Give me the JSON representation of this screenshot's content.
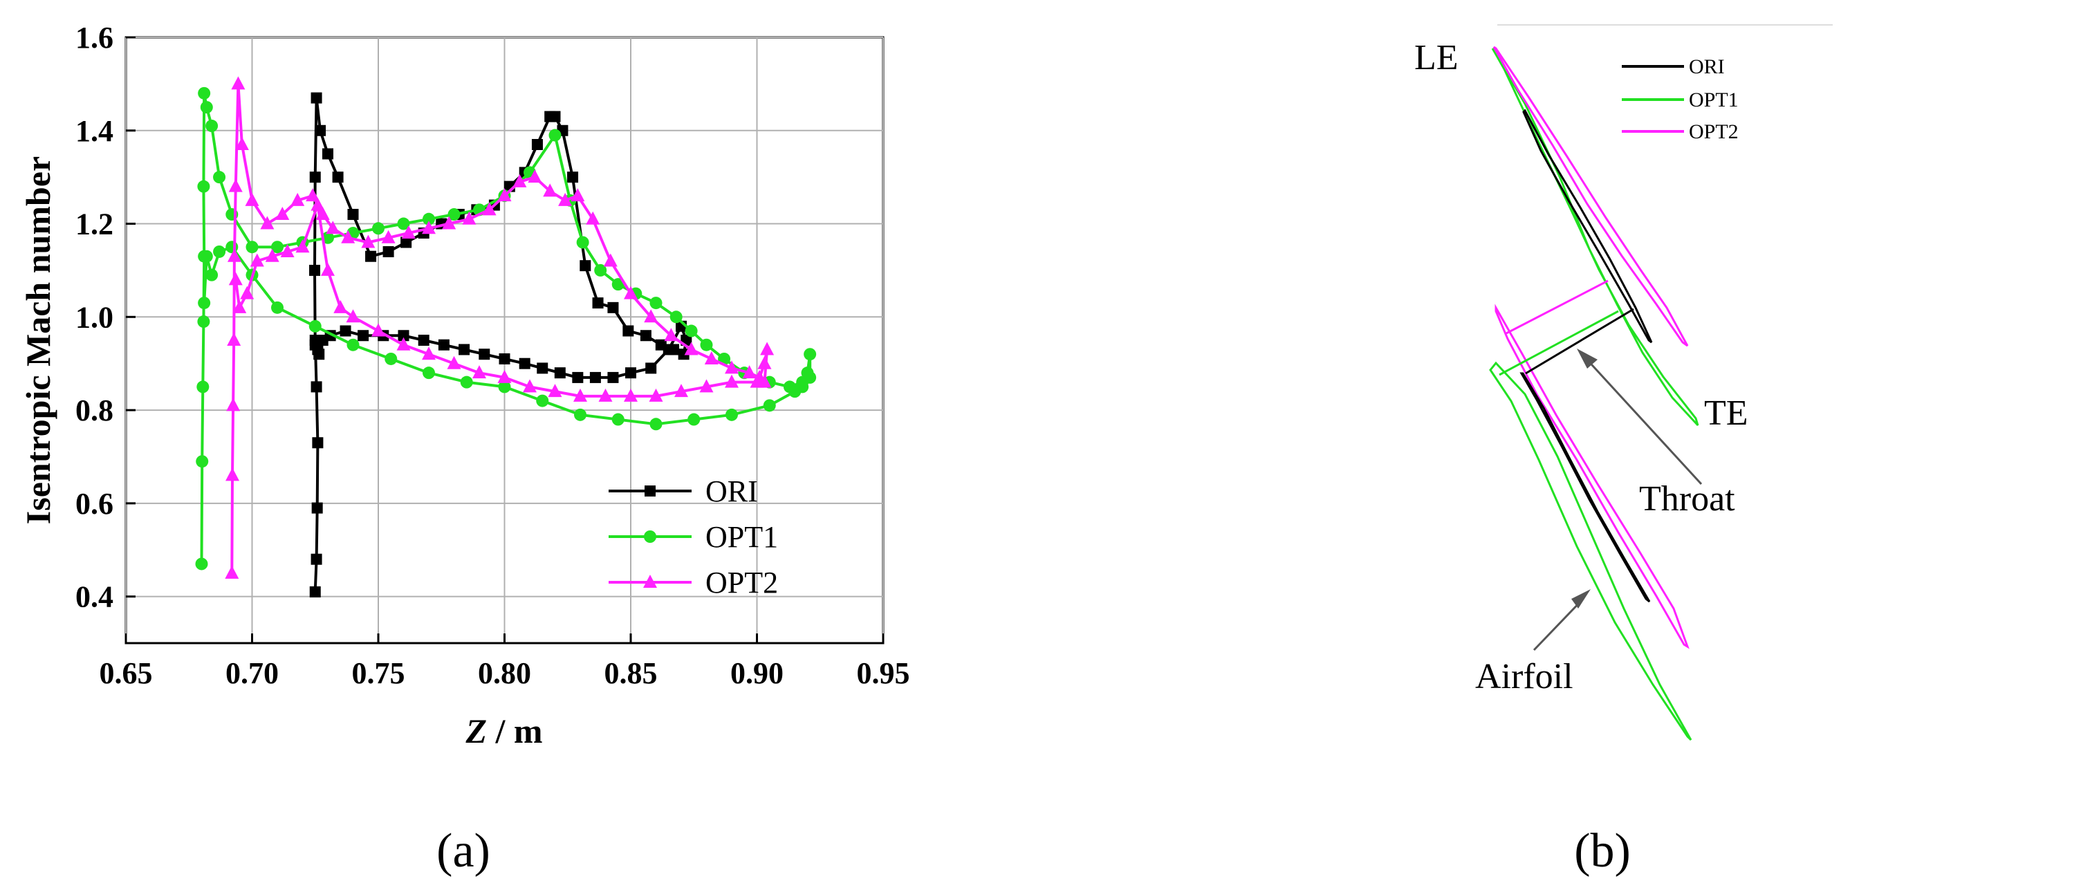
{
  "panel_labels": {
    "a": "(a)",
    "b": "(b)"
  },
  "colors": {
    "ORI": "#000000",
    "OPT1": "#22e022",
    "OPT2": "#ff22ff",
    "grid": "#b0b0b0"
  },
  "chart_data": {
    "type": "line",
    "xlabel_italic": "Z",
    "xlabel_unit": " / m",
    "ylabel": "Isentropic Mach number",
    "xlim": [
      0.65,
      0.95
    ],
    "ylim": [
      0.3,
      1.6
    ],
    "xticks": [
      "0.65",
      "0.70",
      "0.75",
      "0.80",
      "0.85",
      "0.90",
      "0.95"
    ],
    "yticks": [
      "0.4",
      "0.6",
      "0.8",
      "1.0",
      "1.2",
      "1.4",
      "1.6"
    ],
    "grid": true,
    "legend_position": "bottom-right",
    "series": [
      {
        "name": "ORI",
        "marker": "square",
        "color": "#000000",
        "x": [
          0.725,
          0.7255,
          0.7258,
          0.726,
          0.7255,
          0.725,
          0.7248,
          0.725,
          0.7255,
          0.727,
          0.73,
          0.734,
          0.74,
          0.747,
          0.754,
          0.761,
          0.768,
          0.775,
          0.782,
          0.789,
          0.796,
          0.802,
          0.808,
          0.813,
          0.818,
          0.82,
          0.823,
          0.827,
          0.832,
          0.837,
          0.843,
          0.849,
          0.856,
          0.862,
          0.867,
          0.871,
          0.872,
          0.87,
          0.865,
          0.858,
          0.85,
          0.843,
          0.836,
          0.829,
          0.822,
          0.815,
          0.808,
          0.8,
          0.792,
          0.784,
          0.776,
          0.768,
          0.76,
          0.752,
          0.744,
          0.737,
          0.731,
          0.728,
          0.7265,
          0.726,
          0.7255,
          0.725
        ],
        "y": [
          0.41,
          0.48,
          0.59,
          0.73,
          0.85,
          0.95,
          1.1,
          1.3,
          1.47,
          1.4,
          1.35,
          1.3,
          1.22,
          1.13,
          1.14,
          1.16,
          1.18,
          1.2,
          1.22,
          1.23,
          1.24,
          1.28,
          1.31,
          1.37,
          1.43,
          1.43,
          1.4,
          1.3,
          1.11,
          1.03,
          1.02,
          0.97,
          0.96,
          0.94,
          0.93,
          0.92,
          0.95,
          0.98,
          0.93,
          0.89,
          0.88,
          0.87,
          0.87,
          0.87,
          0.88,
          0.89,
          0.9,
          0.91,
          0.92,
          0.93,
          0.94,
          0.95,
          0.96,
          0.96,
          0.96,
          0.97,
          0.96,
          0.95,
          0.92,
          0.93,
          0.95,
          0.94
        ]
      },
      {
        "name": "OPT1",
        "marker": "circle",
        "color": "#22e022",
        "x": [
          0.68,
          0.6802,
          0.6805,
          0.6808,
          0.681,
          0.6808,
          0.681,
          0.682,
          0.684,
          0.687,
          0.692,
          0.7,
          0.71,
          0.72,
          0.73,
          0.74,
          0.75,
          0.76,
          0.77,
          0.78,
          0.79,
          0.8,
          0.81,
          0.82,
          0.826,
          0.831,
          0.838,
          0.845,
          0.852,
          0.86,
          0.868,
          0.874,
          0.88,
          0.887,
          0.895,
          0.905,
          0.913,
          0.918,
          0.921,
          0.921,
          0.92,
          0.918,
          0.915,
          0.905,
          0.89,
          0.875,
          0.86,
          0.845,
          0.83,
          0.815,
          0.8,
          0.785,
          0.77,
          0.755,
          0.74,
          0.725,
          0.71,
          0.7,
          0.692,
          0.687,
          0.684,
          0.682,
          0.681
        ],
        "y": [
          0.47,
          0.69,
          0.85,
          0.99,
          1.13,
          1.28,
          1.48,
          1.45,
          1.41,
          1.3,
          1.22,
          1.15,
          1.15,
          1.16,
          1.17,
          1.18,
          1.19,
          1.2,
          1.21,
          1.22,
          1.23,
          1.26,
          1.31,
          1.39,
          1.25,
          1.16,
          1.1,
          1.07,
          1.05,
          1.03,
          1.0,
          0.97,
          0.94,
          0.91,
          0.88,
          0.86,
          0.85,
          0.86,
          0.87,
          0.92,
          0.88,
          0.85,
          0.84,
          0.81,
          0.79,
          0.78,
          0.77,
          0.78,
          0.79,
          0.82,
          0.85,
          0.86,
          0.88,
          0.91,
          0.94,
          0.98,
          1.02,
          1.09,
          1.15,
          1.14,
          1.09,
          1.13,
          1.03
        ]
      },
      {
        "name": "OPT2",
        "marker": "triangle",
        "color": "#ff22ff",
        "x": [
          0.692,
          0.6922,
          0.6925,
          0.6928,
          0.693,
          0.6935,
          0.6945,
          0.696,
          0.7,
          0.706,
          0.712,
          0.718,
          0.724,
          0.728,
          0.732,
          0.738,
          0.746,
          0.754,
          0.762,
          0.77,
          0.778,
          0.786,
          0.794,
          0.8,
          0.806,
          0.812,
          0.818,
          0.824,
          0.829,
          0.835,
          0.842,
          0.85,
          0.858,
          0.866,
          0.874,
          0.882,
          0.89,
          0.897,
          0.901,
          0.903,
          0.904,
          0.903,
          0.9,
          0.89,
          0.88,
          0.87,
          0.86,
          0.85,
          0.84,
          0.83,
          0.82,
          0.81,
          0.8,
          0.79,
          0.78,
          0.77,
          0.76,
          0.75,
          0.74,
          0.735,
          0.73,
          0.726,
          0.72,
          0.714,
          0.708,
          0.702,
          0.698,
          0.695,
          0.6935
        ],
        "y": [
          0.45,
          0.66,
          0.81,
          0.95,
          1.13,
          1.28,
          1.5,
          1.37,
          1.25,
          1.2,
          1.22,
          1.25,
          1.26,
          1.22,
          1.19,
          1.17,
          1.16,
          1.17,
          1.18,
          1.19,
          1.2,
          1.21,
          1.23,
          1.26,
          1.29,
          1.3,
          1.27,
          1.25,
          1.26,
          1.21,
          1.12,
          1.05,
          1.0,
          0.96,
          0.93,
          0.91,
          0.89,
          0.88,
          0.87,
          0.9,
          0.93,
          0.86,
          0.86,
          0.86,
          0.85,
          0.84,
          0.83,
          0.83,
          0.83,
          0.83,
          0.84,
          0.85,
          0.87,
          0.88,
          0.9,
          0.92,
          0.94,
          0.97,
          1.0,
          1.02,
          1.1,
          1.24,
          1.15,
          1.14,
          1.13,
          1.12,
          1.05,
          1.02,
          1.08
        ]
      }
    ]
  },
  "diagram": {
    "labels": {
      "le": "LE",
      "te": "TE",
      "throat": "Throat",
      "airfoil": "Airfoil"
    },
    "legend": [
      "ORI",
      "OPT1",
      "OPT2"
    ]
  }
}
